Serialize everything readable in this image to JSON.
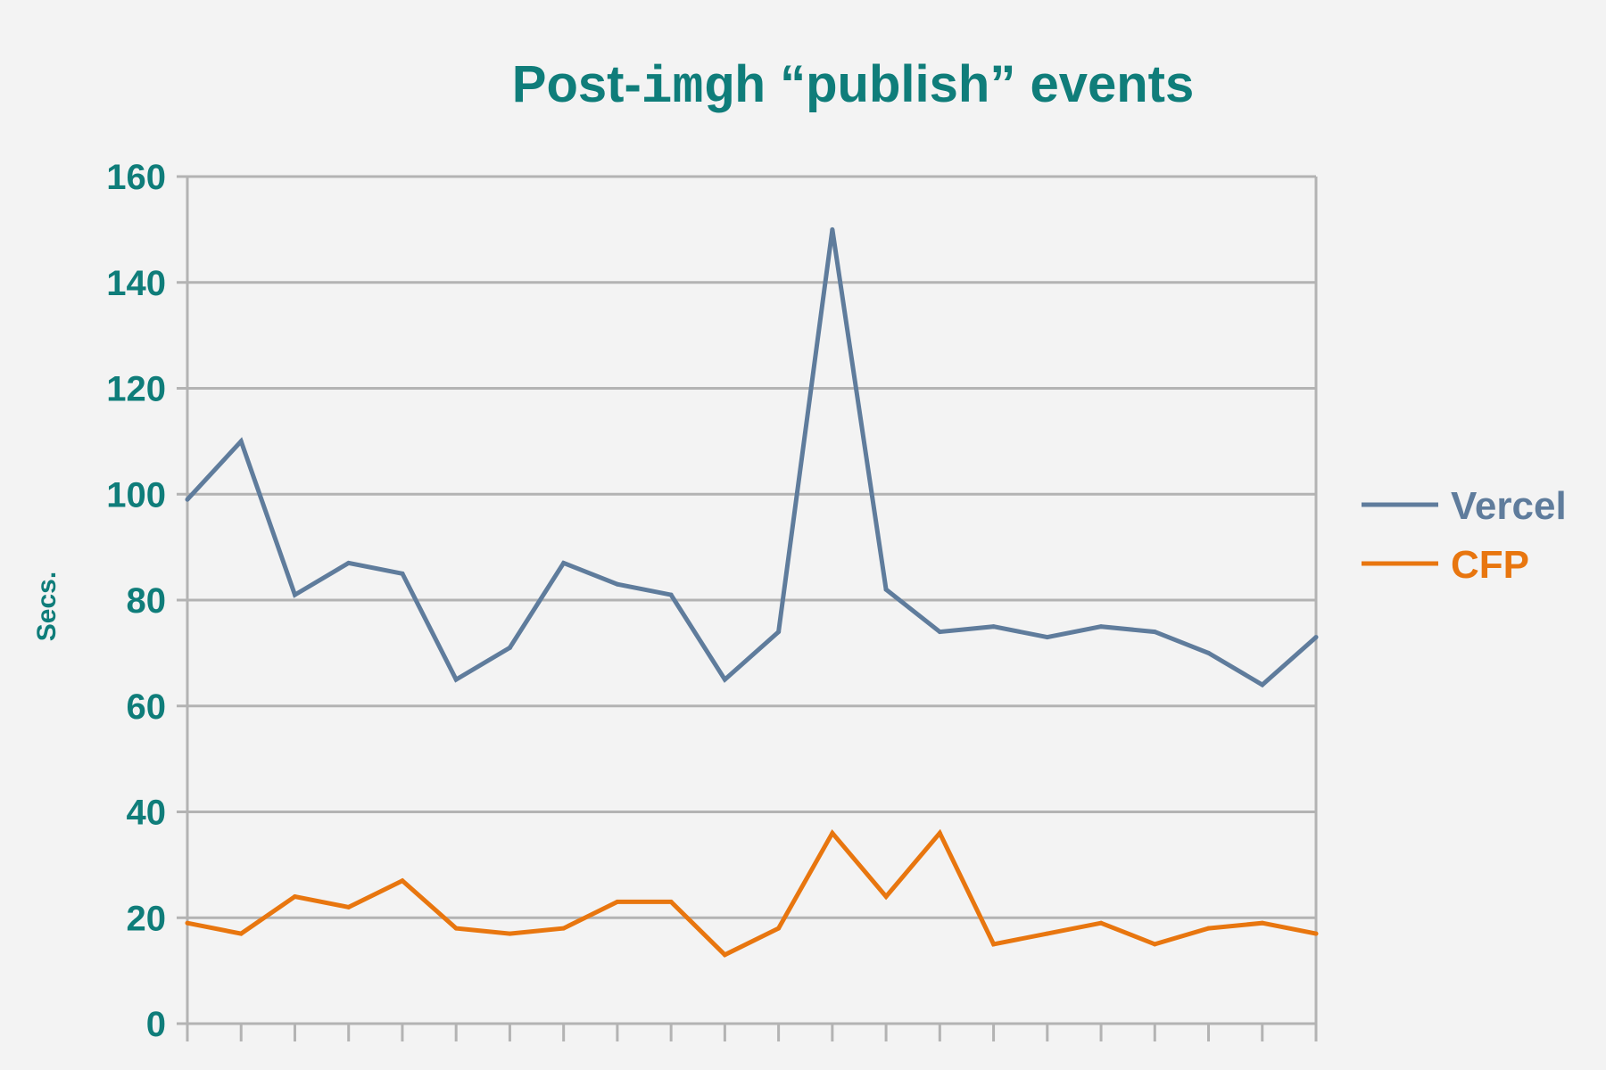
{
  "chart_data": {
    "type": "line",
    "title": {
      "prefix": "Post-",
      "mono": "imgh",
      "suffix": " “publish” events"
    },
    "xlabel": "",
    "ylabel": "Secs.",
    "ylim": [
      0,
      160
    ],
    "y_ticks": [
      "0",
      "20",
      "40",
      "60",
      "80",
      "100",
      "120",
      "140",
      "160"
    ],
    "x_count": 22,
    "grid": "horizontal",
    "legend_position": "right",
    "series": [
      {
        "name": "Vercel",
        "color": "#5f7c9c",
        "values": [
          99,
          110,
          81,
          87,
          85,
          65,
          71,
          87,
          83,
          81,
          65,
          74,
          150,
          82,
          74,
          75,
          73,
          75,
          74,
          70,
          64,
          73
        ]
      },
      {
        "name": "CFP",
        "color": "#e8760f",
        "values": [
          19,
          17,
          24,
          22,
          27,
          18,
          17,
          18,
          23,
          23,
          13,
          18,
          36,
          24,
          36,
          15,
          17,
          19,
          15,
          18,
          19,
          17
        ]
      }
    ],
    "colors": {
      "accent": "#0f7d7a",
      "grid": "#b3b3b3",
      "background": "#f3f3f3"
    }
  }
}
